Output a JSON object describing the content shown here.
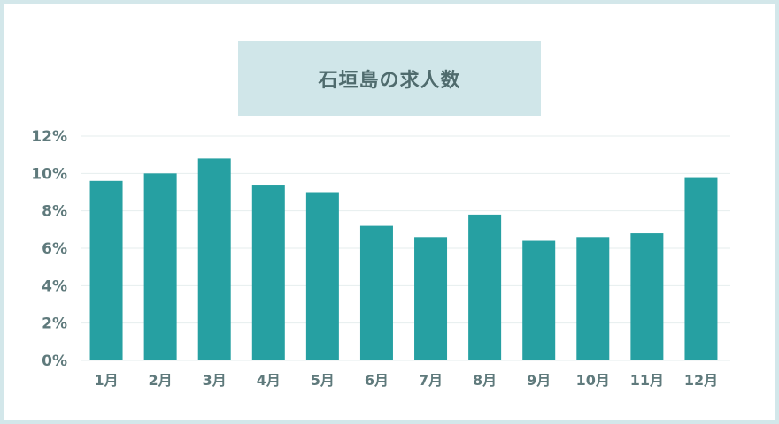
{
  "chart_data": {
    "type": "bar",
    "title": "石垣島の求人数",
    "categories": [
      "1月",
      "2月",
      "3月",
      "4月",
      "5月",
      "6月",
      "7月",
      "8月",
      "9月",
      "10月",
      "11月",
      "12月"
    ],
    "values": [
      9.6,
      10.0,
      10.8,
      9.4,
      9.0,
      7.2,
      6.6,
      7.8,
      6.4,
      6.6,
      6.8,
      9.8
    ],
    "ylim": [
      0,
      12
    ],
    "yticks": [
      "0%",
      "2%",
      "4%",
      "6%",
      "8%",
      "10%",
      "12%"
    ],
    "xlabel": "",
    "ylabel": "",
    "grid": true,
    "bar_color": "#26a0a2",
    "grid_color": "#e6eeee"
  }
}
